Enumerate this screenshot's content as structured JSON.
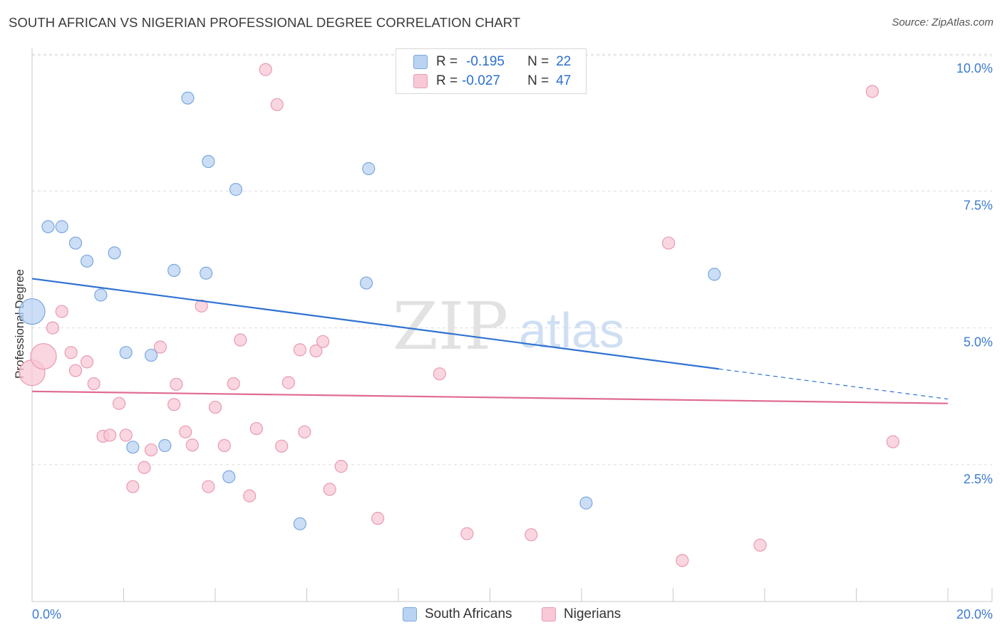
{
  "title": "SOUTH AFRICAN VS NIGERIAN PROFESSIONAL DEGREE CORRELATION CHART",
  "source": "Source: ZipAtlas.com",
  "watermark": {
    "zip": "ZIP",
    "atlas": "atlas"
  },
  "legend": {
    "r_label": "R =",
    "n_label": "N =",
    "rows": [
      {
        "name": "South Africans",
        "r": "-0.195",
        "n": "22"
      },
      {
        "name": "Nigerians",
        "r": "-0.027",
        "n": "47"
      }
    ]
  },
  "bottom_legend": [
    "South Africans",
    "Nigerians"
  ],
  "colors": {
    "blue_fill": "#b9d3f3",
    "blue_stroke": "#7aa7df",
    "blue_line": "#2f72d2",
    "pink_fill": "#f8c8d6",
    "pink_stroke": "#e89ab2",
    "pink_line": "#e06a93",
    "axis_text": "#3d7bd1",
    "grid": "#dddddd"
  },
  "chart_data": {
    "type": "scatter",
    "title": "SOUTH AFRICAN VS NIGERIAN PROFESSIONAL DEGREE CORRELATION CHART",
    "xlabel": "",
    "ylabel": "Professional Degree",
    "xlim": [
      0,
      20
    ],
    "ylim": [
      0,
      10.25
    ],
    "x_tick_labels": [
      "0.0%",
      "20.0%"
    ],
    "y_ticks": [
      {
        "value": 2.5,
        "label": "2.5%"
      },
      {
        "value": 5.0,
        "label": "5.0%"
      },
      {
        "value": 7.5,
        "label": "7.5%"
      },
      {
        "value": 10.0,
        "label": "10.0%"
      }
    ],
    "series": [
      {
        "name": "South Africans",
        "r": -0.195,
        "n": 22,
        "trend": {
          "x0": 0,
          "y0": 5.9,
          "x1": 15.0,
          "y1": 4.25,
          "dash_to_x": 20,
          "dash_to_y": 3.7
        },
        "points": [
          {
            "x": 0.0,
            "y": 5.3,
            "big": true
          },
          {
            "x": 0.35,
            "y": 6.85
          },
          {
            "x": 0.65,
            "y": 6.85
          },
          {
            "x": 0.95,
            "y": 6.55
          },
          {
            "x": 1.2,
            "y": 6.22
          },
          {
            "x": 1.5,
            "y": 5.6
          },
          {
            "x": 1.8,
            "y": 6.37
          },
          {
            "x": 2.05,
            "y": 4.55
          },
          {
            "x": 2.6,
            "y": 4.5
          },
          {
            "x": 3.1,
            "y": 6.05
          },
          {
            "x": 3.4,
            "y": 9.2
          },
          {
            "x": 3.8,
            "y": 6.0
          },
          {
            "x": 3.85,
            "y": 8.04
          },
          {
            "x": 4.45,
            "y": 7.53
          },
          {
            "x": 2.2,
            "y": 2.82
          },
          {
            "x": 2.9,
            "y": 2.85
          },
          {
            "x": 4.3,
            "y": 2.28
          },
          {
            "x": 5.85,
            "y": 1.42
          },
          {
            "x": 7.3,
            "y": 5.82
          },
          {
            "x": 7.35,
            "y": 7.91
          },
          {
            "x": 12.1,
            "y": 1.8
          },
          {
            "x": 14.9,
            "y": 5.98
          }
        ]
      },
      {
        "name": "Nigerians",
        "r": -0.027,
        "n": 47,
        "trend": {
          "x0": 0,
          "y0": 3.84,
          "x1": 20,
          "y1": 3.62
        },
        "points": [
          {
            "x": 0.0,
            "y": 4.18,
            "big": true
          },
          {
            "x": 0.25,
            "y": 4.48,
            "big": true
          },
          {
            "x": 0.45,
            "y": 5.0
          },
          {
            "x": 0.65,
            "y": 5.3
          },
          {
            "x": 0.85,
            "y": 4.55
          },
          {
            "x": 0.95,
            "y": 4.22
          },
          {
            "x": 1.2,
            "y": 4.38
          },
          {
            "x": 1.35,
            "y": 3.98
          },
          {
            "x": 1.55,
            "y": 3.02
          },
          {
            "x": 1.7,
            "y": 3.04
          },
          {
            "x": 1.9,
            "y": 3.62
          },
          {
            "x": 2.05,
            "y": 3.04
          },
          {
            "x": 2.2,
            "y": 2.1
          },
          {
            "x": 2.45,
            "y": 2.45
          },
          {
            "x": 2.6,
            "y": 2.77
          },
          {
            "x": 2.8,
            "y": 4.65
          },
          {
            "x": 3.1,
            "y": 3.6
          },
          {
            "x": 3.15,
            "y": 3.97
          },
          {
            "x": 3.35,
            "y": 3.1
          },
          {
            "x": 3.5,
            "y": 2.86
          },
          {
            "x": 3.7,
            "y": 5.4
          },
          {
            "x": 3.85,
            "y": 2.1
          },
          {
            "x": 4.0,
            "y": 3.55
          },
          {
            "x": 4.2,
            "y": 2.85
          },
          {
            "x": 4.4,
            "y": 3.98
          },
          {
            "x": 4.55,
            "y": 4.78
          },
          {
            "x": 4.75,
            "y": 1.93
          },
          {
            "x": 4.9,
            "y": 3.16
          },
          {
            "x": 5.1,
            "y": 9.72
          },
          {
            "x": 5.35,
            "y": 9.08
          },
          {
            "x": 5.45,
            "y": 2.84
          },
          {
            "x": 5.6,
            "y": 4.0
          },
          {
            "x": 5.85,
            "y": 4.6
          },
          {
            "x": 5.95,
            "y": 3.1
          },
          {
            "x": 6.2,
            "y": 4.58
          },
          {
            "x": 6.35,
            "y": 4.75
          },
          {
            "x": 6.5,
            "y": 2.05
          },
          {
            "x": 6.75,
            "y": 2.47
          },
          {
            "x": 7.55,
            "y": 1.52
          },
          {
            "x": 8.9,
            "y": 4.16
          },
          {
            "x": 9.5,
            "y": 1.24
          },
          {
            "x": 10.9,
            "y": 1.22
          },
          {
            "x": 13.9,
            "y": 6.55
          },
          {
            "x": 14.2,
            "y": 0.75
          },
          {
            "x": 15.9,
            "y": 1.03
          },
          {
            "x": 18.35,
            "y": 9.32
          },
          {
            "x": 18.8,
            "y": 2.92
          }
        ]
      }
    ]
  }
}
